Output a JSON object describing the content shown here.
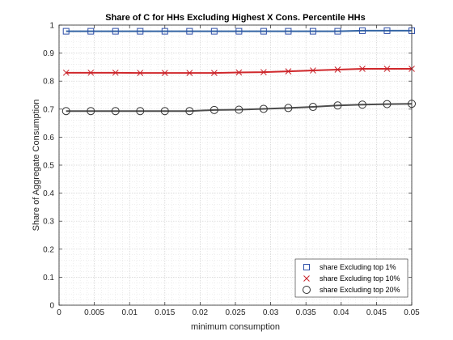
{
  "chart_data": {
    "type": "line",
    "title": "Share of C for HHs Excluding Highest X Cons. Percentile HHs",
    "xlabel": "minimum consumption",
    "ylabel": "Share of Aggregate Consumption",
    "xlim": [
      0,
      0.05
    ],
    "ylim": [
      0,
      1
    ],
    "xticks": [
      0,
      0.005,
      0.01,
      0.015,
      0.02,
      0.025,
      0.03,
      0.035,
      0.04,
      0.045,
      0.05
    ],
    "xtick_labels": [
      "0",
      "0.005",
      "0.01",
      "0.015",
      "0.02",
      "0.025",
      "0.03",
      "0.035",
      "0.04",
      "0.045",
      "0.05"
    ],
    "yticks": [
      0,
      0.1,
      0.2,
      0.3,
      0.4,
      0.5,
      0.6,
      0.7,
      0.8,
      0.9,
      1
    ],
    "ytick_labels": [
      "0",
      "0.1",
      "0.2",
      "0.3",
      "0.4",
      "0.5",
      "0.6",
      "0.7",
      "0.8",
      "0.9",
      "1"
    ],
    "grid": "major and minor (dotted)",
    "legend_position": "bottom-right",
    "x": [
      0.001,
      0.0045,
      0.008,
      0.0115,
      0.015,
      0.0185,
      0.022,
      0.0255,
      0.029,
      0.0325,
      0.036,
      0.0395,
      0.043,
      0.0465,
      0.05
    ],
    "series": [
      {
        "name": "share Excluding top 1%",
        "line_color": "#3465a4",
        "marker_color": "#2e4fa8",
        "marker": "square",
        "values": [
          0.978,
          0.978,
          0.978,
          0.978,
          0.978,
          0.978,
          0.978,
          0.978,
          0.978,
          0.978,
          0.978,
          0.978,
          0.98,
          0.98,
          0.98
        ]
      },
      {
        "name": "share Excluding top 10%",
        "line_color": "#d0282c",
        "marker_color": "#c8222a",
        "marker": "x",
        "values": [
          0.83,
          0.83,
          0.83,
          0.829,
          0.829,
          0.829,
          0.829,
          0.831,
          0.832,
          0.835,
          0.838,
          0.841,
          0.844,
          0.844,
          0.844
        ]
      },
      {
        "name": "share Excluding top 20%",
        "line_color": "#4d4d4d",
        "marker_color": "#333333",
        "marker": "circle",
        "values": [
          0.693,
          0.693,
          0.693,
          0.693,
          0.693,
          0.693,
          0.697,
          0.698,
          0.701,
          0.704,
          0.708,
          0.713,
          0.716,
          0.718,
          0.719
        ]
      }
    ]
  }
}
